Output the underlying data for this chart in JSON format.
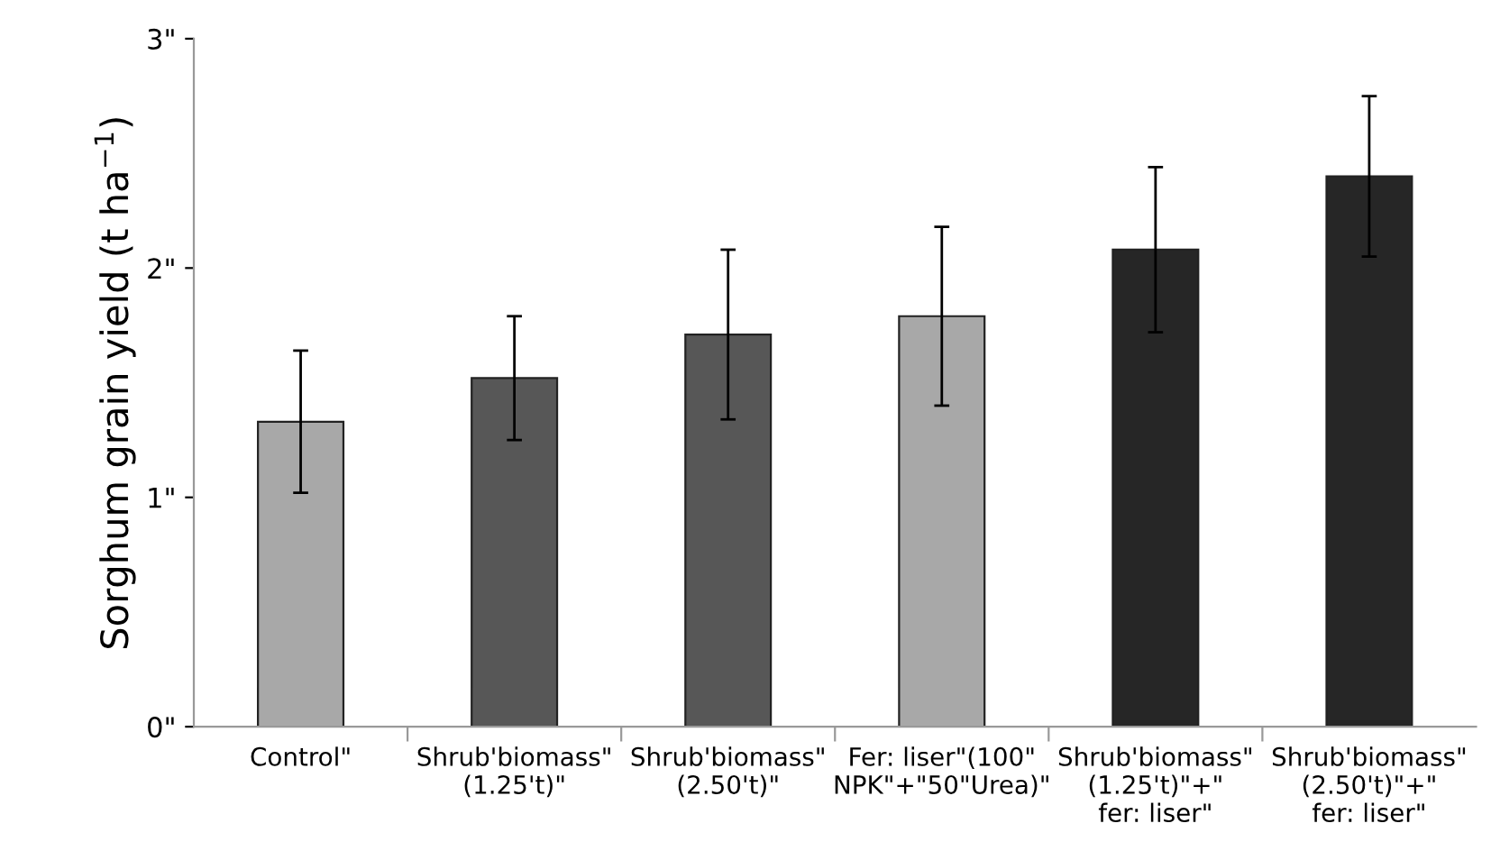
{
  "chart_data": {
    "type": "bar",
    "ylabel": "Sorghum grain yield (t ha$^{−1}$)",
    "categories": [
      "Control\"",
      "Shrub'biomass\"\n(1.25't)\"",
      "Shrub'biomass\"\n(2.50't)\"",
      "Fer: liser\"(100\"\nNPK\"+\"50\"Urea)\"",
      "Shrub'biomass\"\n(1.25't)\"+\"\nfer: liser\"",
      "Shrub'biomass\"\n(2.50't)\"+\"\nfer: liser\""
    ],
    "values": [
      1.33,
      1.52,
      1.71,
      1.79,
      2.08,
      2.4
    ],
    "errors": [
      0.31,
      0.27,
      0.37,
      0.39,
      0.36,
      0.35
    ],
    "colors": [
      "#a8a8a8",
      "#575757",
      "#575757",
      "#a8a8a8",
      "#262626",
      "#262626"
    ],
    "ylim": [
      0,
      3
    ],
    "yticks": [
      {
        "value": 0,
        "label": "0\""
      },
      {
        "value": 1,
        "label": "1\""
      },
      {
        "value": 2,
        "label": "2\""
      },
      {
        "value": 3,
        "label": "3\""
      }
    ],
    "grid": false,
    "legend": false
  }
}
